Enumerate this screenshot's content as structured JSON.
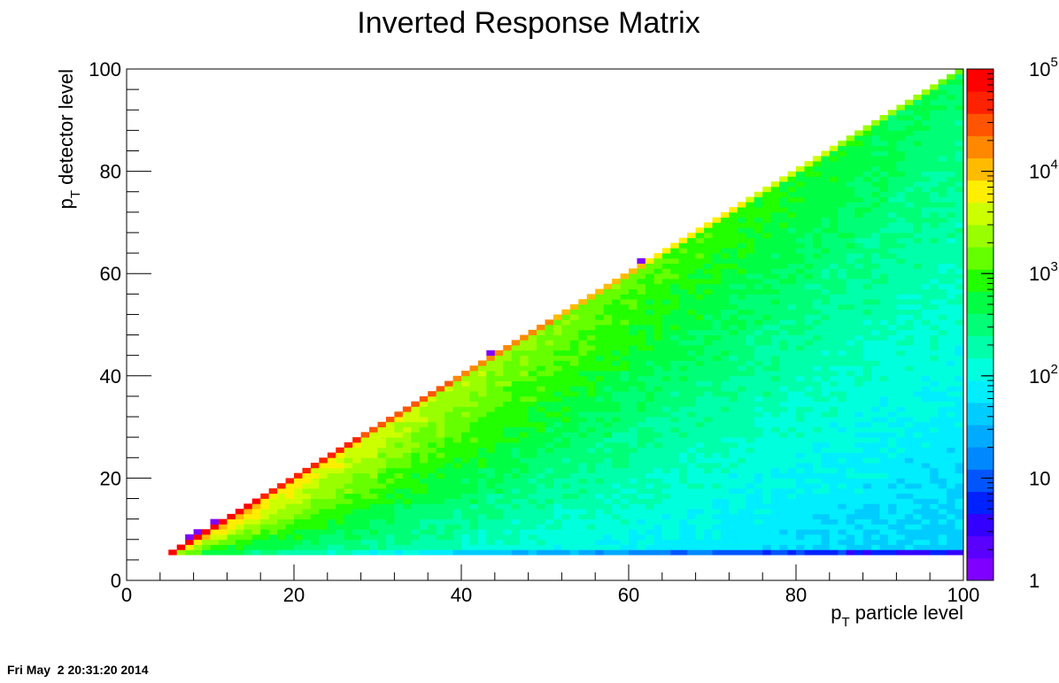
{
  "chart_data": {
    "type": "heatmap",
    "title": "Inverted Response Matrix",
    "xlabel": {
      "main": "p",
      "sub": "T",
      "rest": " particle level"
    },
    "ylabel": {
      "main": "p",
      "sub": "T",
      "rest": " detector level"
    },
    "xlim": [
      0,
      100
    ],
    "ylim": [
      0,
      100
    ],
    "x_ticks": [
      {
        "value": 0,
        "label": "0"
      },
      {
        "value": 20,
        "label": "20"
      },
      {
        "value": 40,
        "label": "40"
      },
      {
        "value": 60,
        "label": "60"
      },
      {
        "value": 80,
        "label": "80"
      },
      {
        "value": 100,
        "label": "100"
      }
    ],
    "y_ticks": [
      {
        "value": 0,
        "label": "0"
      },
      {
        "value": 20,
        "label": "20"
      },
      {
        "value": 40,
        "label": "40"
      },
      {
        "value": 60,
        "label": "60"
      },
      {
        "value": 80,
        "label": "80"
      },
      {
        "value": 100,
        "label": "100"
      }
    ],
    "grid": false,
    "z_scale": "log",
    "zlim": [
      1,
      100000
    ],
    "colorbar": {
      "placement": "right",
      "ticks": [
        {
          "value": 1,
          "base": "1",
          "exp": ""
        },
        {
          "value": 10,
          "base": "10",
          "exp": ""
        },
        {
          "value": 100,
          "base": "10",
          "exp": "2"
        },
        {
          "value": 1000,
          "base": "10",
          "exp": "3"
        },
        {
          "value": 10000,
          "base": "10",
          "exp": "4"
        },
        {
          "value": 100000,
          "base": "10",
          "exp": "5"
        }
      ],
      "palette": [
        "#7f00ff",
        "#5a00ff",
        "#3300ff",
        "#0022ff",
        "#0055ff",
        "#0088ff",
        "#00aaff",
        "#00ccff",
        "#00eeff",
        "#00ffdd",
        "#00ffaa",
        "#00ff77",
        "#00ff44",
        "#22ff00",
        "#66ff00",
        "#99ff00",
        "#ccff00",
        "#ffee00",
        "#ffbb00",
        "#ff8800",
        "#ff5500",
        "#ff2200",
        "#ff0000"
      ]
    },
    "data_range": {
      "x": [
        5,
        100
      ],
      "y": [
        5,
        100
      ],
      "diagonal_peak_counts": {
        "at_x_5": 100000,
        "at_x_100": 1000
      },
      "description": "counts concentrated along the diagonal y = x, falling toward low y and sparse above the diagonal"
    }
  },
  "footer": {
    "timestamp": "Fri May  2 20:31:20 2014"
  }
}
